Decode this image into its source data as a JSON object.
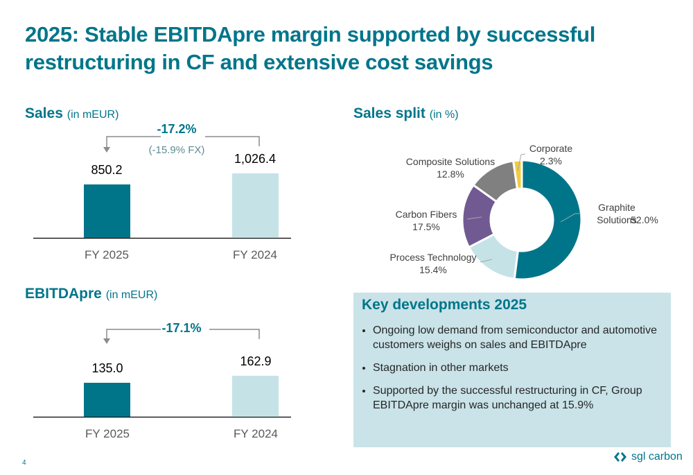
{
  "title": "2025: Stable EBITDApre margin supported by successful restructuring in CF and extensive cost savings",
  "page_number": "4",
  "logo_text": "sgl carbon",
  "colors": {
    "accent": "#00758a",
    "light": "#c5e2e7",
    "carbon_fibers": "#715a92",
    "composite": "#808080",
    "corporate": "#f2cc3c"
  },
  "key_developments": {
    "title": "Key developments 2025",
    "bullets": [
      "Ongoing low demand from semiconductor and automotive customers weighs on sales and EBITDApre",
      "Stagnation in other markets",
      "Supported by the successful restructuring in CF, Group EBITDApre margin was unchanged at 15.9%"
    ]
  },
  "chart_data": [
    {
      "type": "bar",
      "title": "Sales",
      "unit": "(in mEUR)",
      "categories": [
        "FY 2025",
        "FY 2024"
      ],
      "values": [
        850.2,
        1026.4
      ],
      "value_labels": [
        "850.2",
        "1,026.4"
      ],
      "change": "-17.2%",
      "change_note": "(-15.9% FX)"
    },
    {
      "type": "bar",
      "title": "EBITDApre",
      "unit": "(in mEUR)",
      "categories": [
        "FY 2025",
        "FY 2024"
      ],
      "values": [
        135.0,
        162.9
      ],
      "value_labels": [
        "135.0",
        "162.9"
      ],
      "change": "-17.1%"
    },
    {
      "type": "pie",
      "title": "Sales split",
      "unit": "(in %)",
      "donut": true,
      "slices": [
        {
          "name": "Graphite Solutions",
          "value": 52.0,
          "label": "52.0%",
          "color": "#00758a"
        },
        {
          "name": "Process Technology",
          "value": 15.4,
          "label": "15.4%",
          "color": "#c5e2e7"
        },
        {
          "name": "Carbon Fibers",
          "value": 17.5,
          "label": "17.5%",
          "color": "#715a92"
        },
        {
          "name": "Composite Solutions",
          "value": 12.8,
          "label": "12.8%",
          "color": "#808080"
        },
        {
          "name": "Corporate",
          "value": 2.3,
          "label": "2.3%",
          "color": "#f2cc3c"
        }
      ]
    }
  ]
}
